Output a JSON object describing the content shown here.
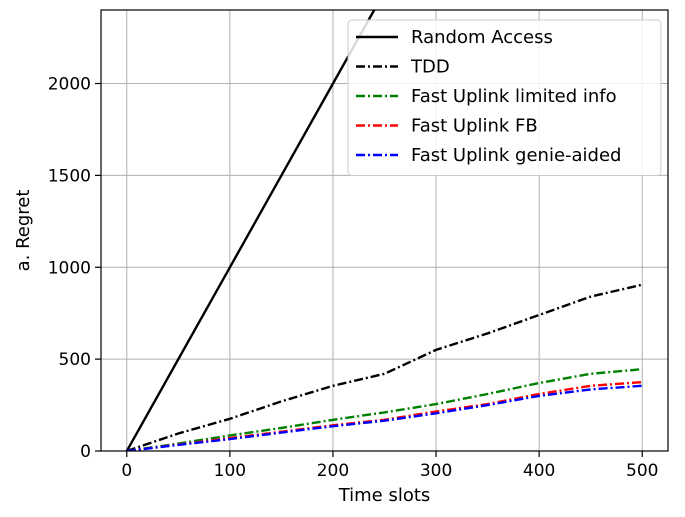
{
  "chart_data": {
    "type": "line",
    "title": "",
    "xlabel": "Time slots",
    "ylabel": "a. Regret",
    "xlim": [
      -25,
      525
    ],
    "ylim": [
      0,
      2400
    ],
    "xticks": [
      0,
      100,
      200,
      300,
      400,
      500
    ],
    "yticks": [
      0,
      500,
      1000,
      1500,
      2000
    ],
    "grid": true,
    "legend_position": "top-right",
    "series": [
      {
        "name": "Random Access",
        "color": "#000000",
        "dash": "solid",
        "x": [
          0,
          100,
          200,
          243
        ],
        "y": [
          0,
          1000,
          2000,
          2430
        ]
      },
      {
        "name": "TDD",
        "color": "#000000",
        "dash": "dashdot",
        "x": [
          0,
          50,
          100,
          150,
          200,
          250,
          300,
          350,
          400,
          450,
          500
        ],
        "y": [
          0,
          95,
          175,
          270,
          355,
          420,
          550,
          640,
          740,
          840,
          905
        ]
      },
      {
        "name": "Fast Uplink limited info",
        "color": "#008000",
        "dash": "dashdot",
        "x": [
          0,
          50,
          100,
          150,
          200,
          250,
          300,
          350,
          400,
          450,
          500
        ],
        "y": [
          0,
          40,
          85,
          125,
          170,
          210,
          255,
          310,
          370,
          420,
          445
        ]
      },
      {
        "name": "Fast Uplink FB",
        "color": "#ff0000",
        "dash": "dashdot",
        "x": [
          0,
          50,
          100,
          150,
          200,
          250,
          300,
          350,
          400,
          450,
          500
        ],
        "y": [
          0,
          35,
          70,
          105,
          140,
          170,
          215,
          255,
          310,
          355,
          375
        ]
      },
      {
        "name": "Fast Uplink genie-aided",
        "color": "#0000ff",
        "dash": "dashdot",
        "x": [
          0,
          50,
          100,
          150,
          200,
          250,
          300,
          350,
          400,
          450,
          500
        ],
        "y": [
          0,
          33,
          65,
          100,
          135,
          165,
          205,
          250,
          300,
          335,
          355
        ]
      }
    ]
  }
}
